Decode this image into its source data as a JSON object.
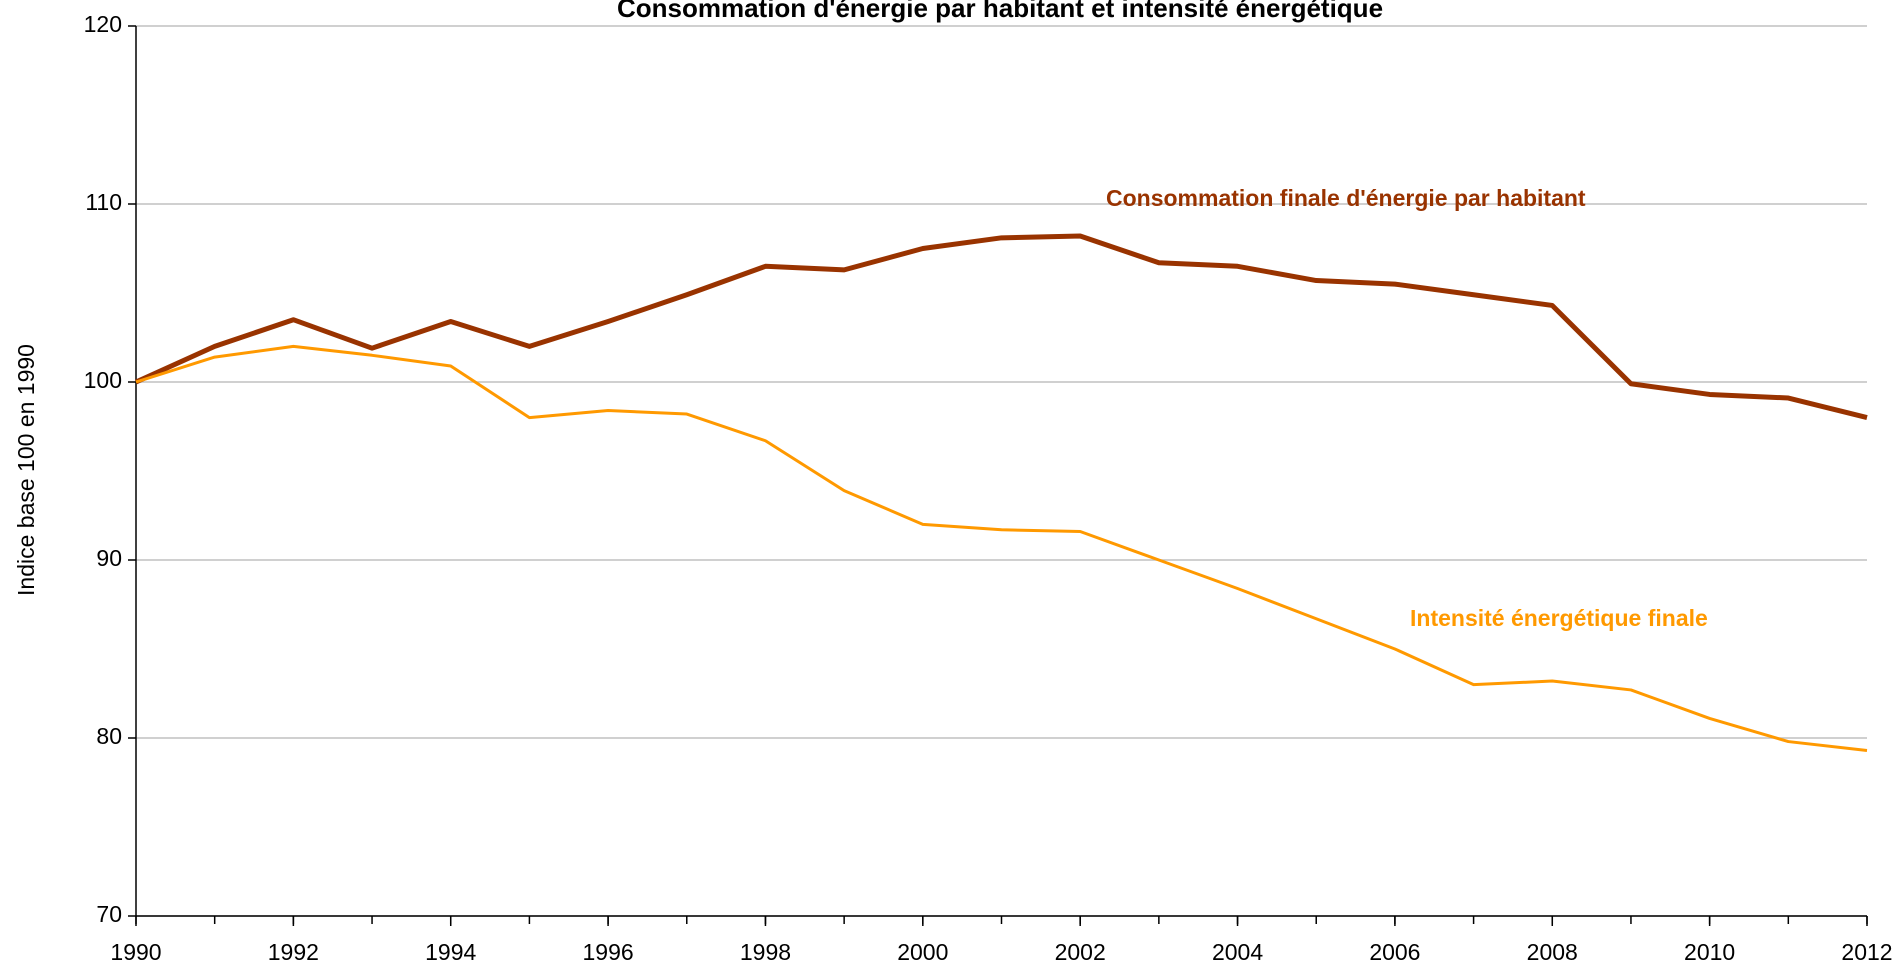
{
  "chart_data": {
    "type": "line",
    "title": "Consommation d'énergie par habitant et intensité énergétique",
    "y_label": "Indice base 100 en 1990",
    "x": [
      1990,
      1991,
      1992,
      1993,
      1994,
      1995,
      1996,
      1997,
      1998,
      1999,
      2000,
      2001,
      2002,
      2003,
      2004,
      2005,
      2006,
      2007,
      2008,
      2009,
      2010,
      2011,
      2012
    ],
    "series": [
      {
        "name": "Consommation finale d'énergie par habitant",
        "color": "#993300",
        "values": [
          100,
          102.0,
          103.5,
          101.9,
          103.4,
          102.0,
          103.4,
          104.9,
          106.5,
          106.3,
          107.5,
          108.1,
          108.2,
          106.7,
          106.5,
          105.7,
          105.5,
          104.9,
          104.3,
          99.9,
          99.3,
          99.1,
          98.0
        ]
      },
      {
        "name": "Intensité énergétique finale",
        "color": "#ff9900",
        "values": [
          100,
          101.4,
          102.0,
          101.5,
          100.9,
          98.0,
          98.4,
          98.2,
          96.7,
          93.9,
          92.0,
          91.7,
          91.6,
          90.0,
          88.4,
          86.7,
          85.0,
          83.0,
          83.2,
          82.7,
          81.1,
          79.8,
          79.3
        ]
      }
    ],
    "xlim": [
      1990,
      2012
    ],
    "xticks": [
      1990,
      1992,
      1994,
      1996,
      1998,
      2000,
      2002,
      2004,
      2006,
      2008,
      2010,
      2012
    ],
    "ylim": [
      70,
      120
    ],
    "yticks": [
      70,
      80,
      90,
      100,
      110,
      120
    ],
    "grid": true
  }
}
